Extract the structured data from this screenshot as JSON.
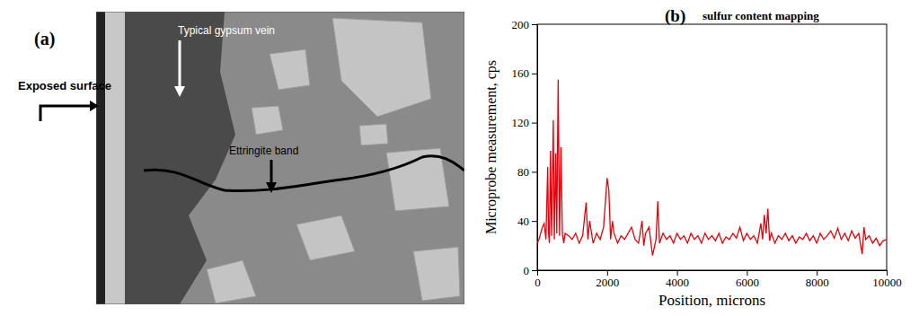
{
  "chart_data": {
    "type": "line",
    "title": "sulfur content mapping",
    "annotations": [
      "(b)"
    ],
    "x_label": "Position, microns",
    "y_label": "Microprobe measurement, cps",
    "xlim": [
      0,
      10000
    ],
    "xticks": [
      0,
      2000,
      4000,
      6000,
      8000,
      10000
    ],
    "ylim": [
      0,
      200
    ],
    "yticks": [
      0,
      40,
      80,
      120,
      160,
      200
    ],
    "grid": false,
    "x": [
      0,
      50,
      100,
      150,
      200,
      250,
      300,
      325,
      350,
      380,
      410,
      460,
      490,
      530,
      560,
      600,
      640,
      680,
      720,
      760,
      800,
      900,
      1000,
      1100,
      1200,
      1300,
      1400,
      1450,
      1500,
      1600,
      1700,
      1800,
      1900,
      2000,
      2050,
      2100,
      2150,
      2200,
      2300,
      2400,
      2500,
      2600,
      2700,
      2800,
      2900,
      3000,
      3050,
      3100,
      3200,
      3300,
      3400,
      3450,
      3500,
      3600,
      3700,
      3800,
      3900,
      4000,
      4100,
      4200,
      4300,
      4400,
      4500,
      4600,
      4700,
      4800,
      4900,
      5000,
      5100,
      5200,
      5300,
      5400,
      5500,
      5600,
      5700,
      5800,
      5900,
      6000,
      6100,
      6200,
      6300,
      6400,
      6450,
      6500,
      6550,
      6600,
      6650,
      6700,
      6800,
      6900,
      7000,
      7100,
      7200,
      7300,
      7400,
      7500,
      7600,
      7700,
      7800,
      7900,
      8000,
      8100,
      8200,
      8300,
      8400,
      8500,
      8600,
      8700,
      8800,
      8900,
      9000,
      9100,
      9200,
      9300,
      9350,
      9400,
      9500,
      9600,
      9700,
      9800,
      9900,
      10000
    ],
    "series": [
      {
        "name": "sulfur",
        "color": "#e8000b",
        "values": [
          22,
          25,
          30,
          35,
          38,
          25,
          84,
          30,
          22,
          97,
          28,
          122,
          25,
          95,
          30,
          155,
          28,
          100,
          30,
          22,
          30,
          28,
          25,
          30,
          22,
          28,
          55,
          25,
          40,
          22,
          30,
          25,
          35,
          75,
          65,
          25,
          40,
          30,
          22,
          28,
          25,
          30,
          35,
          25,
          22,
          40,
          20,
          30,
          35,
          12,
          25,
          56,
          22,
          30,
          25,
          28,
          22,
          30,
          25,
          28,
          22,
          30,
          25,
          28,
          22,
          30,
          25,
          28,
          24,
          30,
          22,
          27,
          25,
          30,
          26,
          35,
          24,
          30,
          25,
          28,
          22,
          38,
          25,
          45,
          30,
          50,
          24,
          30,
          22,
          28,
          25,
          30,
          24,
          28,
          22,
          27,
          25,
          30,
          24,
          28,
          22,
          30,
          25,
          28,
          32,
          26,
          34,
          25,
          30,
          24,
          32,
          26,
          30,
          13,
          35,
          25,
          28,
          22,
          26,
          20,
          24,
          25
        ]
      }
    ]
  },
  "micrograph": {
    "label": "(a)",
    "annotations": [
      "Exposed surface",
      "Typical gypsum vein",
      "Ettringite band"
    ]
  }
}
